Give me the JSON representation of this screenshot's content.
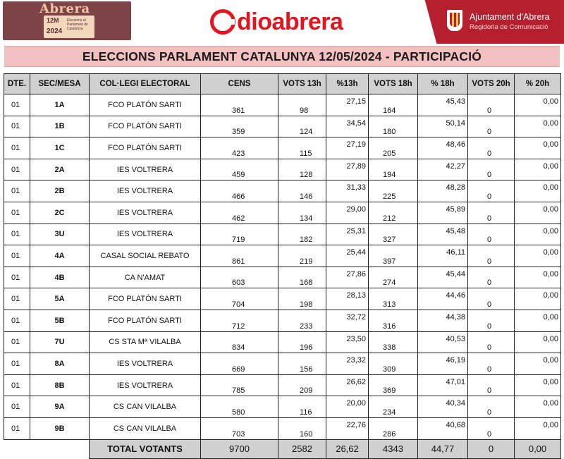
{
  "header": {
    "left_logo": {
      "word": "Abrera",
      "tag_year_line1": "12M",
      "tag_year_line2": "2024",
      "tag_desc": "Eleccions al Parlament de Catalunya"
    },
    "brand": {
      "text": "dioabrera"
    },
    "ajuntament": {
      "line1": "Ajuntament d'Abrera",
      "line2": "Regidoria de Comunicació"
    }
  },
  "title": "ELECCIONS PARLAMENT CATALUNYA 12/05/2024 - PARTICIPACIÓ",
  "table": {
    "headers": [
      "DTE.",
      "SEC/MESA",
      "COL·LEGI ELECTORAL",
      "CENS",
      "VOTS 13h",
      "%13h",
      "VOTS 18h",
      "% 18h",
      "VOTS 20h",
      "% 20h"
    ],
    "rows": [
      [
        "01",
        "1A",
        "FCO PLATÓN SARTI",
        "361",
        "98",
        "27,15",
        "164",
        "45,43",
        "0",
        "0,00"
      ],
      [
        "01",
        "1B",
        "FCO PLATÓN SARTI",
        "359",
        "124",
        "34,54",
        "180",
        "50,14",
        "0",
        "0,00"
      ],
      [
        "01",
        "1C",
        "FCO PLATÓN SARTI",
        "423",
        "115",
        "27,19",
        "205",
        "48,46",
        "0",
        "0,00"
      ],
      [
        "01",
        "2A",
        "IES VOLTRERA",
        "459",
        "128",
        "27,89",
        "194",
        "42,27",
        "0",
        "0,00"
      ],
      [
        "01",
        "2B",
        "IES VOLTRERA",
        "466",
        "146",
        "31,33",
        "225",
        "48,28",
        "0",
        "0,00"
      ],
      [
        "01",
        "2C",
        "IES VOLTRERA",
        "462",
        "134",
        "29,00",
        "212",
        "45,89",
        "0",
        "0,00"
      ],
      [
        "01",
        "3U",
        "IES VOLTRERA",
        "719",
        "182",
        "25,31",
        "327",
        "45,48",
        "0",
        "0,00"
      ],
      [
        "01",
        "4A",
        "CASAL SOCIAL REBATO",
        "861",
        "219",
        "25,44",
        "397",
        "46,11",
        "0",
        "0,00"
      ],
      [
        "01",
        "4B",
        "CA N'AMAT",
        "603",
        "168",
        "27,86",
        "274",
        "45,44",
        "0",
        "0,00"
      ],
      [
        "01",
        "5A",
        "FCO PLATÓN SARTI",
        "704",
        "198",
        "28,13",
        "313",
        "44,46",
        "0",
        "0,00"
      ],
      [
        "01",
        "5B",
        "FCO PLATÓN SARTI",
        "712",
        "233",
        "32,72",
        "316",
        "44,38",
        "0",
        "0,00"
      ],
      [
        "01",
        "7U",
        "CS STA Mª VILALBA",
        "834",
        "196",
        "23,50",
        "338",
        "40,53",
        "0",
        "0,00"
      ],
      [
        "01",
        "8A",
        "IES VOLTRERA",
        "669",
        "156",
        "23,32",
        "309",
        "46,19",
        "0",
        "0,00"
      ],
      [
        "01",
        "8B",
        "IES VOLTRERA",
        "785",
        "209",
        "26,62",
        "369",
        "47,01",
        "0",
        "0,00"
      ],
      [
        "01",
        "9A",
        "CS CAN VILALBA",
        "580",
        "116",
        "20,00",
        "234",
        "40,34",
        "0",
        "0,00"
      ],
      [
        "01",
        "9B",
        "CS CAN VILALBA",
        "703",
        "160",
        "22,76",
        "286",
        "40,68",
        "0",
        "0,00"
      ]
    ],
    "total": {
      "label": "TOTAL VOTANTS",
      "values": [
        "9700",
        "2582",
        "26,62",
        "4343",
        "44,77",
        "0",
        "0,00"
      ]
    }
  }
}
